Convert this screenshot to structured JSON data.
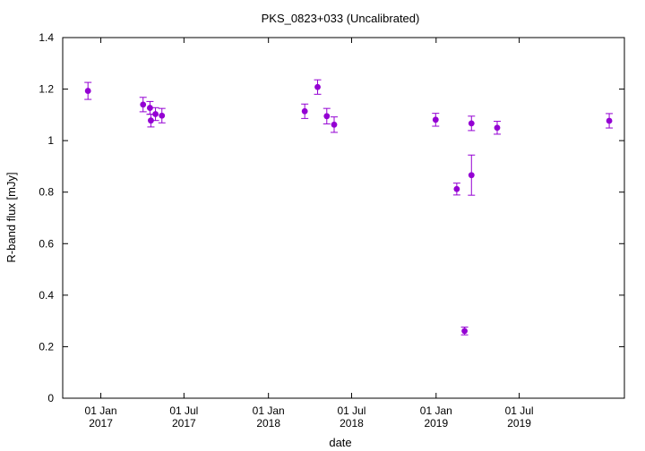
{
  "chart_data": {
    "type": "scatter",
    "title": "PKS_0823+033 (Uncalibrated)",
    "xlabel": "date",
    "ylabel": "R-band flux [mJy]",
    "ylim": [
      0,
      1.4
    ],
    "xlim": [
      "2016-10-10",
      "2020-02-15"
    ],
    "grid": false,
    "marker_color": "#9400d3",
    "yticks": [
      {
        "value": 0,
        "label": "0"
      },
      {
        "value": 0.2,
        "label": "0.2"
      },
      {
        "value": 0.4,
        "label": "0.4"
      },
      {
        "value": 0.6,
        "label": "0.6"
      },
      {
        "value": 0.8,
        "label": "0.8"
      },
      {
        "value": 1.0,
        "label": "1"
      },
      {
        "value": 1.2,
        "label": "1.2"
      },
      {
        "value": 1.4,
        "label": "1.4"
      }
    ],
    "xticks": [
      {
        "date": "2017-01-01",
        "line1": "01 Jan",
        "line2": "2017"
      },
      {
        "date": "2017-07-01",
        "line1": "01 Jul",
        "line2": "2017"
      },
      {
        "date": "2018-01-01",
        "line1": "01 Jan",
        "line2": "2018"
      },
      {
        "date": "2018-07-01",
        "line1": "01 Jul",
        "line2": "2018"
      },
      {
        "date": "2019-01-01",
        "line1": "01 Jan",
        "line2": "2019"
      },
      {
        "date": "2019-07-01",
        "line1": "01 Jul",
        "line2": "2019"
      }
    ],
    "points": [
      {
        "date": "2016-12-04",
        "y": 1.193,
        "err": 0.033
      },
      {
        "date": "2017-04-03",
        "y": 1.14,
        "err": 0.028
      },
      {
        "date": "2017-04-18",
        "y": 1.127,
        "err": 0.025
      },
      {
        "date": "2017-04-20",
        "y": 1.078,
        "err": 0.025
      },
      {
        "date": "2017-04-30",
        "y": 1.103,
        "err": 0.025
      },
      {
        "date": "2017-05-14",
        "y": 1.097,
        "err": 0.028
      },
      {
        "date": "2018-03-21",
        "y": 1.114,
        "err": 0.028
      },
      {
        "date": "2018-04-18",
        "y": 1.208,
        "err": 0.028
      },
      {
        "date": "2018-05-08",
        "y": 1.095,
        "err": 0.03
      },
      {
        "date": "2018-05-24",
        "y": 1.062,
        "err": 0.03
      },
      {
        "date": "2018-12-31",
        "y": 1.081,
        "err": 0.025
      },
      {
        "date": "2019-02-15",
        "y": 0.812,
        "err": 0.023
      },
      {
        "date": "2019-03-04",
        "y": 0.261,
        "err": 0.015
      },
      {
        "date": "2019-03-19",
        "y": 1.067,
        "err": 0.028
      },
      {
        "date": "2019-03-19",
        "y": 0.866,
        "err": 0.078
      },
      {
        "date": "2019-05-14",
        "y": 1.05,
        "err": 0.025
      },
      {
        "date": "2020-01-13",
        "y": 1.077,
        "err": 0.028
      }
    ]
  }
}
